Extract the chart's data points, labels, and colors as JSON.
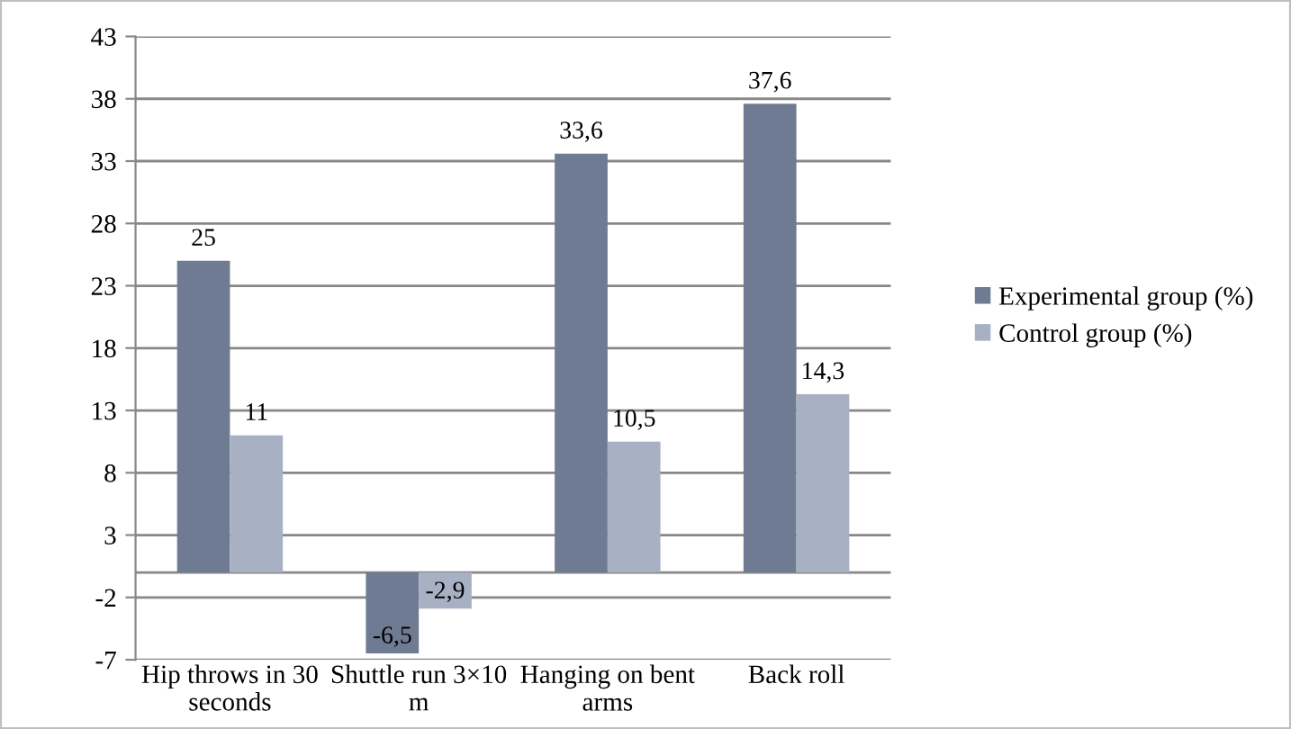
{
  "chart_data": {
    "type": "bar",
    "categories": [
      "Hip throws in 30 seconds",
      "Shuttle run 3×10 m",
      "Hanging on bent arms",
      "Back roll"
    ],
    "series": [
      {
        "name": "Experimental group (%)",
        "color": "#6e7b93",
        "values": [
          25,
          -6.5,
          33.6,
          37.6
        ],
        "value_labels": [
          "25",
          "-6,5",
          "33,6",
          "37,6"
        ]
      },
      {
        "name": "Control group (%)",
        "color": "#a8b1c3",
        "values": [
          11,
          -2.9,
          10.5,
          14.3
        ],
        "value_labels": [
          "11",
          "-2,9",
          "10,5",
          "14,3"
        ]
      }
    ],
    "ylim": [
      -7,
      43
    ],
    "yticks": [
      -7,
      -2,
      3,
      8,
      13,
      18,
      23,
      28,
      33,
      38,
      43
    ],
    "grid": "y",
    "legend": "right"
  }
}
